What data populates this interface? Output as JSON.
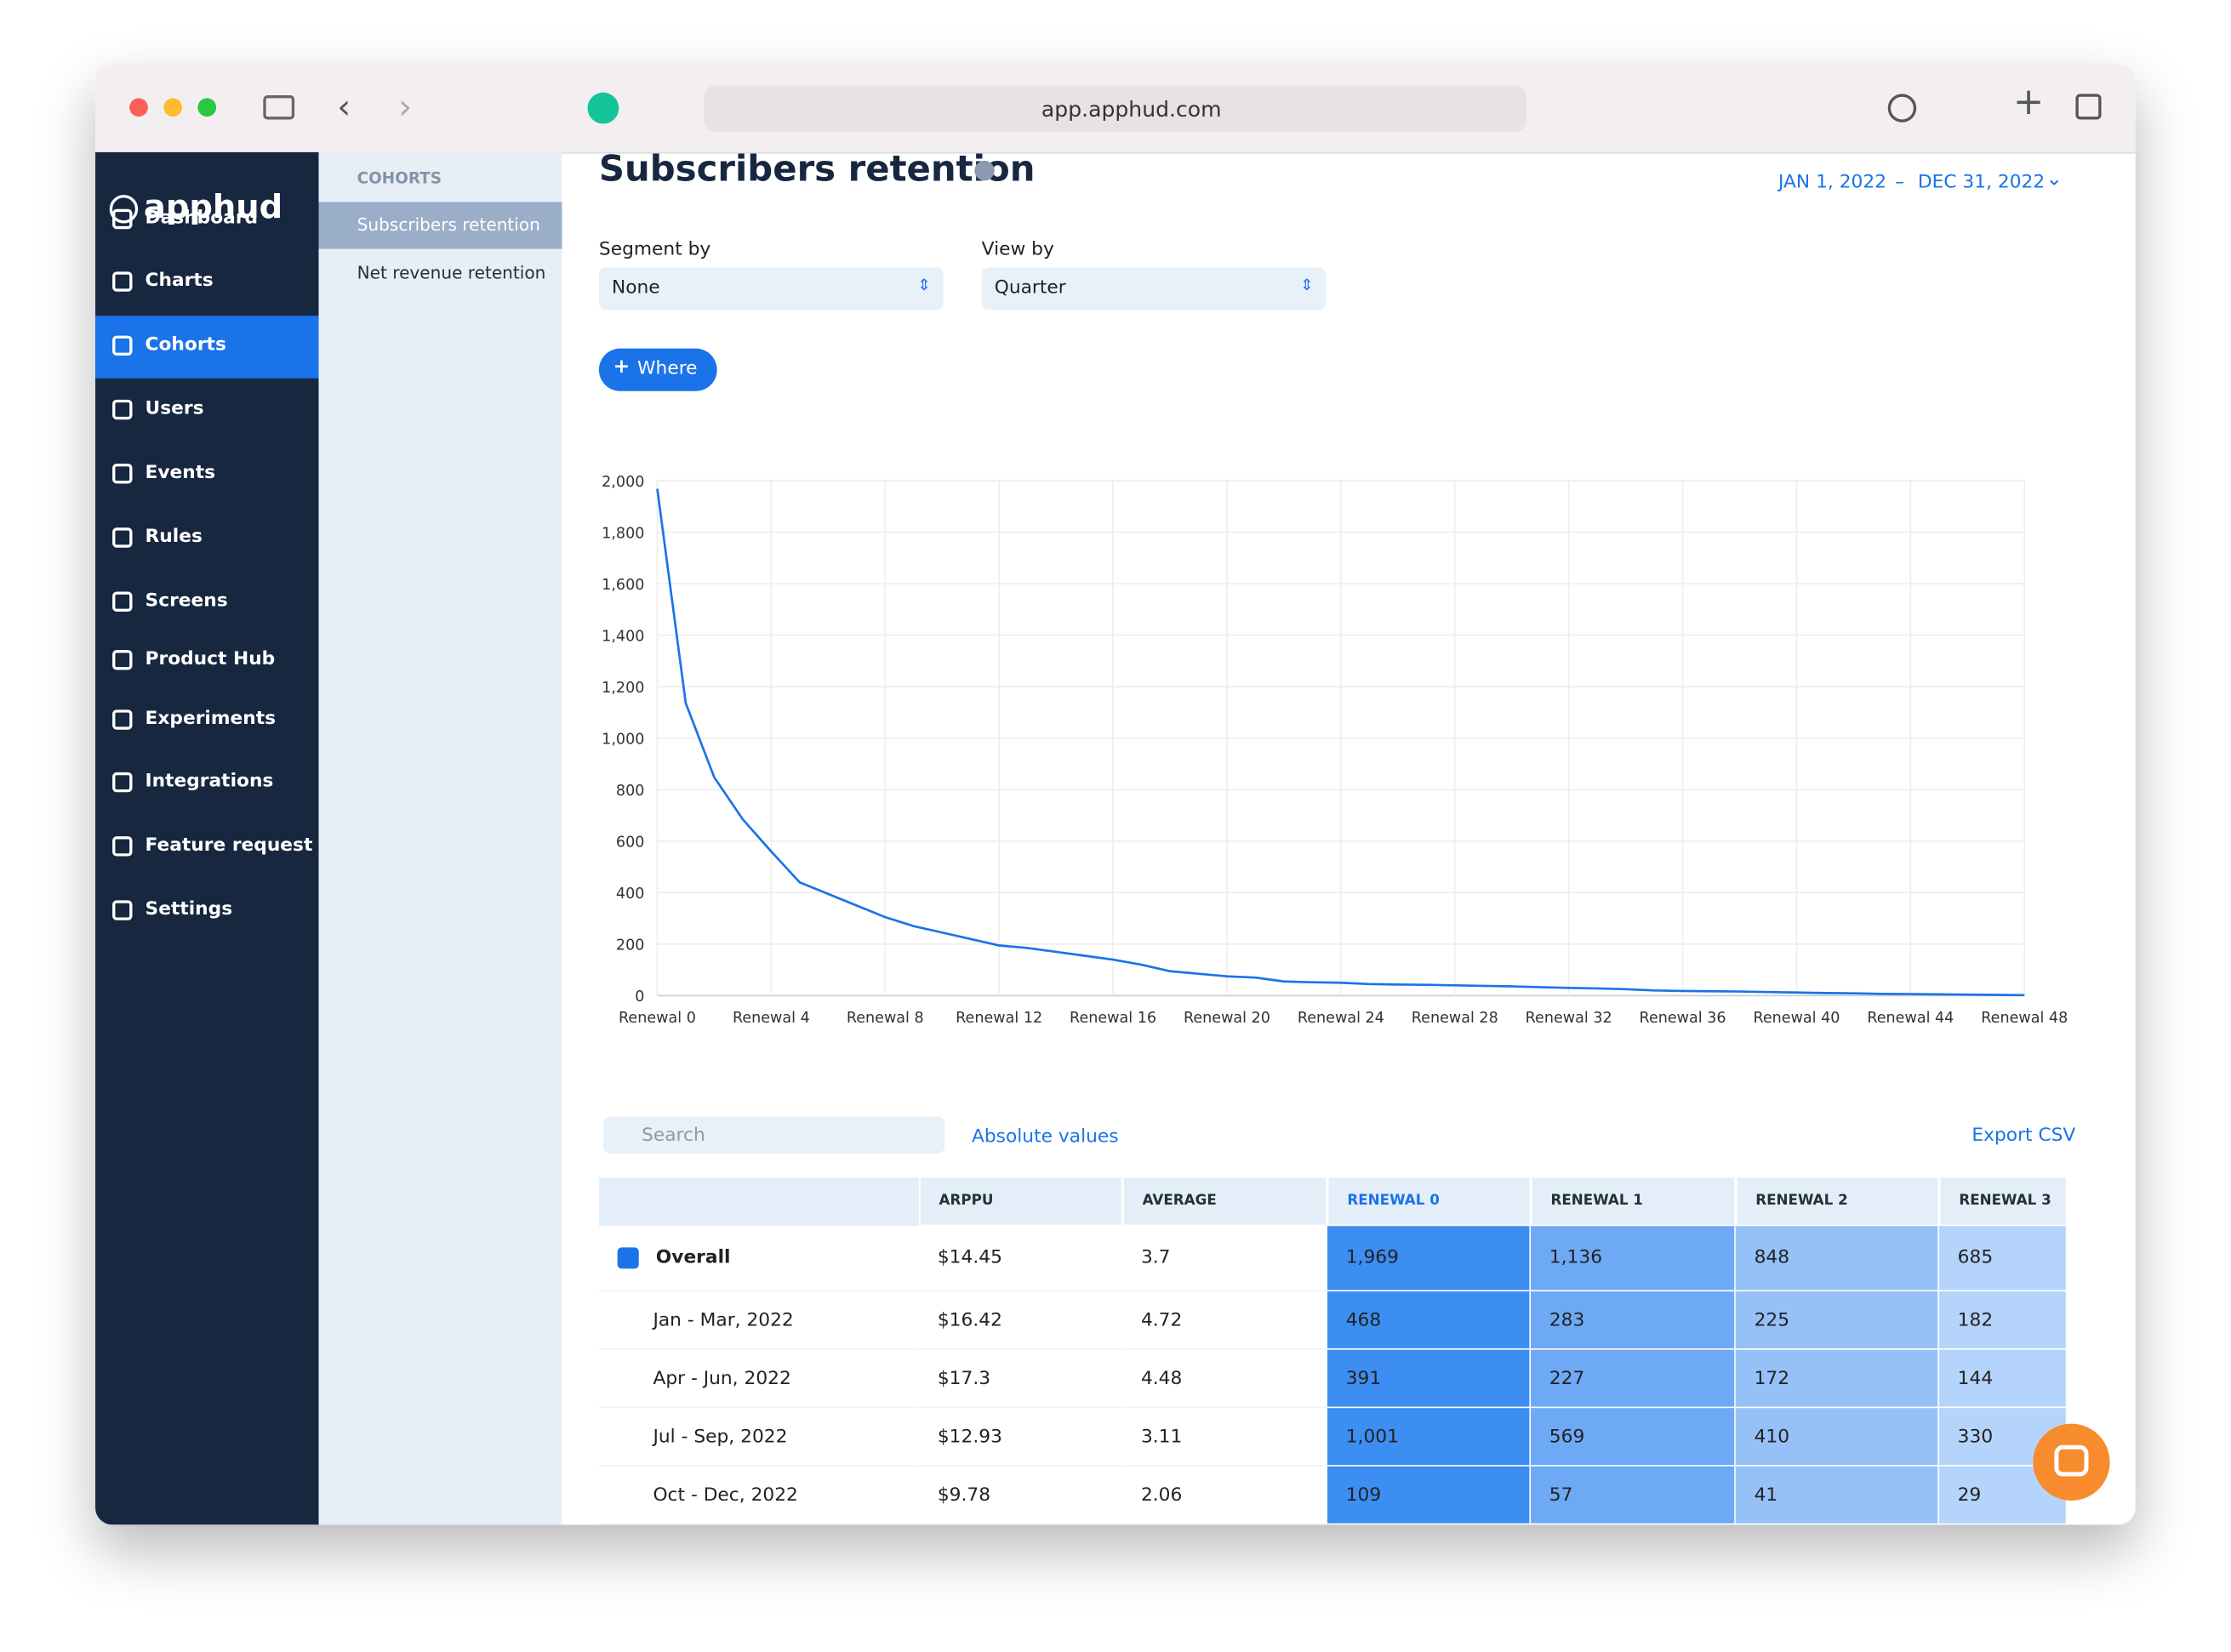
{
  "browser": {
    "url": "app.apphud.com"
  },
  "sidebar": {
    "logo": "apphud",
    "nav": [
      "Dashboard",
      "Charts",
      "Cohorts",
      "Users",
      "Events",
      "Rules",
      "Screens",
      "Product Hub",
      "Experiments",
      "Integrations",
      "Feature request",
      "Settings"
    ]
  },
  "subnav": {
    "section": "COHORTS",
    "items": [
      "Subscribers retention",
      "Net revenue retention"
    ]
  },
  "header": {
    "title": "Subscribers retention",
    "date_start": "JAN 1, 2022",
    "date_sep": "–",
    "date_end": "DEC 31, 2022"
  },
  "controls": {
    "segment_label": "Segment by",
    "segment_value": "None",
    "view_label": "View by",
    "view_value": "Quarter",
    "where_button": "Where",
    "search_placeholder": "Search",
    "values_mode": "Absolute values",
    "export": "Export CSV"
  },
  "chart_data": {
    "type": "line",
    "color": "#1a73e8",
    "grid": true,
    "categories": [
      "Renewal 0",
      null,
      null,
      null,
      "Renewal 4",
      null,
      null,
      null,
      "Renewal 8",
      null,
      null,
      null,
      "Renewal 12",
      null,
      null,
      null,
      "Renewal 16",
      null,
      null,
      null,
      "Renewal 20",
      null,
      null,
      null,
      "Renewal 24",
      null,
      null,
      null,
      "Renewal 28",
      null,
      null,
      null,
      "Renewal 32",
      null,
      null,
      null,
      "Renewal 36",
      null,
      null,
      null,
      "Renewal 40",
      null,
      null,
      null,
      "Renewal 44",
      null,
      null,
      null,
      "Renewal 48"
    ],
    "values": [
      1969,
      1136,
      848,
      685,
      560,
      440,
      395,
      350,
      305,
      270,
      245,
      220,
      195,
      185,
      170,
      155,
      140,
      120,
      95,
      85,
      75,
      70,
      55,
      52,
      50,
      45,
      43,
      42,
      40,
      38,
      36,
      33,
      30,
      28,
      25,
      20,
      18,
      17,
      16,
      14,
      12,
      10,
      9,
      7,
      6,
      5,
      4,
      3,
      2
    ],
    "ylim": [
      0,
      2000
    ],
    "yticks": [
      0,
      200,
      400,
      600,
      800,
      {
        "value": 1000,
        "label": "1,000"
      },
      {
        "value": 1200,
        "label": "1,200"
      },
      {
        "value": 1400,
        "label": "1,400"
      },
      {
        "value": 1600,
        "label": "1,600"
      },
      {
        "value": 1800,
        "label": "1,800"
      },
      {
        "value": 2000,
        "label": "2,000"
      }
    ]
  },
  "table": {
    "columns": [
      "ARPPU",
      "AVERAGE",
      "RENEWAL 0",
      "RENEWAL 1",
      "RENEWAL 2",
      "RENEWAL 3"
    ],
    "rows": [
      [
        "Overall",
        "$14.45",
        "3.7",
        "1,969",
        "1,136",
        "848",
        "685"
      ],
      [
        "Jan - Mar, 2022",
        "$16.42",
        "4.72",
        "468",
        "283",
        "225",
        "182"
      ],
      [
        "Apr - Jun, 2022",
        "$17.3",
        "4.48",
        "391",
        "227",
        "172",
        "144"
      ],
      [
        "Jul - Sep, 2022",
        "$12.93",
        "3.11",
        "1,001",
        "569",
        "410",
        "330"
      ],
      [
        "Oct - Dec, 2022",
        "$9.78",
        "2.06",
        "109",
        "57",
        "41",
        "29"
      ]
    ]
  }
}
